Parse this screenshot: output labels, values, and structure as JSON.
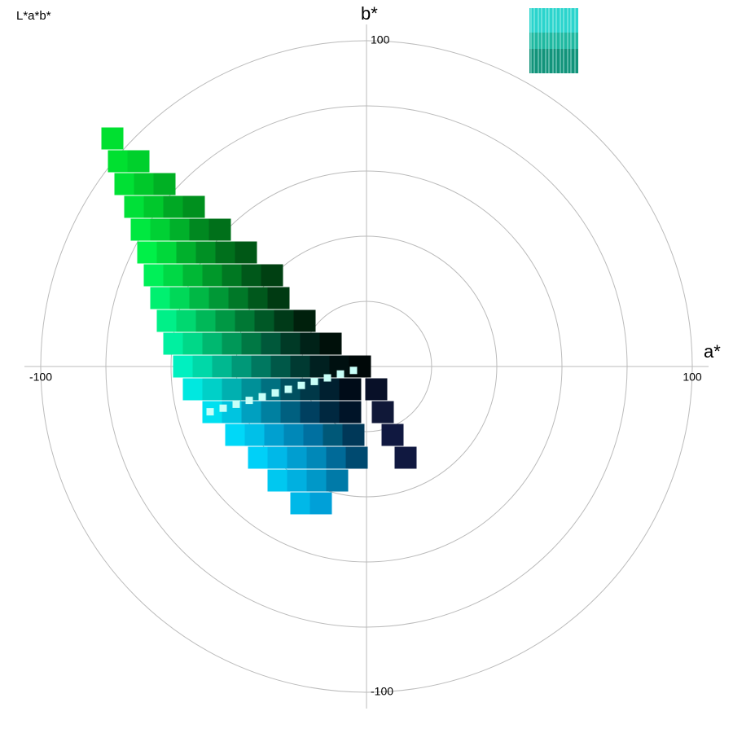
{
  "chart_data": {
    "type": "scatter",
    "title": "L*a*b*",
    "x_label": "a*",
    "y_label": "b*",
    "xlim": [
      -105,
      105
    ],
    "ylim": [
      -105,
      105
    ],
    "xticks": [
      -100,
      100
    ],
    "yticks": [
      -100,
      100
    ],
    "rings": [
      20,
      40,
      60,
      80,
      100
    ],
    "grid": true,
    "series": [
      {
        "x": [
          -78,
          -76,
          -70,
          -74,
          -68,
          -62,
          -71,
          -65,
          -59,
          -53,
          -69,
          -63,
          -57,
          -51,
          -45,
          -67,
          -61,
          -55,
          -49,
          -43,
          -37,
          -65,
          -59,
          -53,
          -47,
          -41,
          -35,
          -29,
          -63,
          -57,
          -51,
          -45,
          -39,
          -33,
          -27,
          -61,
          -55,
          -49,
          -43,
          -37,
          -31,
          -25,
          -19,
          -59,
          -53,
          -47,
          -41,
          -35,
          -29,
          -23,
          -17,
          -11,
          -56,
          -50,
          -44,
          -38,
          -32,
          -26,
          -20,
          -14,
          -8,
          -2,
          -53,
          -47,
          -41,
          -35,
          -29,
          -23,
          -17,
          -11,
          -5,
          3,
          -47,
          -41,
          -35,
          -29,
          -23,
          -17,
          -11,
          -5,
          5,
          -40,
          -34,
          -28,
          -22,
          -16,
          -10,
          -4,
          8,
          -33,
          -27,
          -21,
          -15,
          -9,
          -3,
          12,
          -27,
          -21,
          -15,
          -9,
          -20,
          -14
        ],
        "y": [
          70,
          63,
          63,
          56,
          56,
          56,
          49,
          49,
          49,
          49,
          42,
          42,
          42,
          42,
          42,
          35,
          35,
          35,
          35,
          35,
          35,
          28,
          28,
          28,
          28,
          28,
          28,
          28,
          21,
          21,
          21,
          21,
          21,
          21,
          21,
          14,
          14,
          14,
          14,
          14,
          14,
          14,
          14,
          7,
          7,
          7,
          7,
          7,
          7,
          7,
          7,
          7,
          0,
          0,
          0,
          0,
          0,
          0,
          0,
          0,
          0,
          0,
          -7,
          -7,
          -7,
          -7,
          -7,
          -7,
          -7,
          -7,
          -7,
          -7,
          -14,
          -14,
          -14,
          -14,
          -14,
          -14,
          -14,
          -14,
          -14,
          -21,
          -21,
          -21,
          -21,
          -21,
          -21,
          -21,
          -21,
          -28,
          -28,
          -28,
          -28,
          -28,
          -28,
          -28,
          -35,
          -35,
          -35,
          -35,
          -42,
          -42
        ],
        "colors": [
          "#00e030",
          "#00e030",
          "#00d02c",
          "#00e034",
          "#00c82a",
          "#00b024",
          "#00e038",
          "#00c82c",
          "#00a824",
          "#00901e",
          "#00e840",
          "#00d034",
          "#00b02a",
          "#008820",
          "#00701a",
          "#00f048",
          "#00d83a",
          "#00b02c",
          "#009024",
          "#00701c",
          "#005816",
          "#00f058",
          "#00d845",
          "#00b835",
          "#00982a",
          "#007822",
          "#00581a",
          "#004012",
          "#00f070",
          "#00d858",
          "#00b845",
          "#009836",
          "#007828",
          "#00581c",
          "#003a12",
          "#00f088",
          "#00d870",
          "#00b858",
          "#009844",
          "#007834",
          "#005826",
          "#003a18",
          "#00200c",
          "#00f0a0",
          "#00d888",
          "#00b870",
          "#009858",
          "#007844",
          "#00583a",
          "#003a26",
          "#002218",
          "#00100a",
          "#00f0c0",
          "#00d8a8",
          "#00b890",
          "#009878",
          "#007860",
          "#005848",
          "#003a32",
          "#002020",
          "#001010",
          "#000808",
          "#00e8e0",
          "#00d0c8",
          "#00b0b0",
          "#009098",
          "#007080",
          "#005060",
          "#003848",
          "#002030",
          "#000c18",
          "#081028",
          "#00e0f0",
          "#00c4e0",
          "#00a0c0",
          "#0080a0",
          "#006080",
          "#004060",
          "#002840",
          "#001428",
          "#101838",
          "#00d8f8",
          "#00c0e8",
          "#00a0d0",
          "#0088b8",
          "#0070a0",
          "#005878",
          "#003858",
          "#101840",
          "#00d0f8",
          "#00b8e8",
          "#009ed0",
          "#0088b8",
          "#006a98",
          "#004a70",
          "#101840",
          "#00c8f0",
          "#00b0e0",
          "#0098c8",
          "#007aa8",
          "#00b8e8",
          "#00a0d8"
        ]
      },
      {
        "x": [
          -48,
          -44,
          -40,
          -36,
          -32,
          -28,
          -24,
          -20,
          -16,
          -12,
          -8,
          -4
        ],
        "y": [
          -13.9,
          -12.8,
          -11.6,
          -10.4,
          -9.3,
          -8.1,
          -7,
          -5.8,
          -4.6,
          -3.5,
          -2.3,
          -1.2
        ],
        "color": "#c8fff8"
      }
    ]
  }
}
